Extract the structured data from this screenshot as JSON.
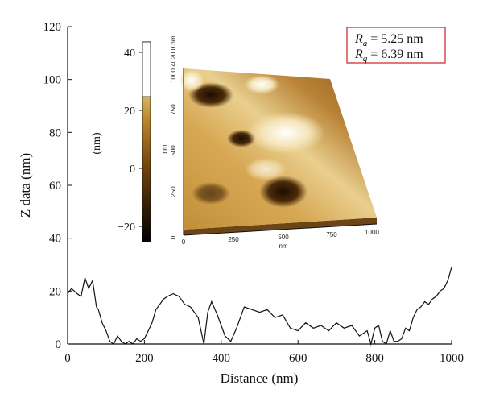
{
  "chart_data": {
    "type": "line",
    "xlabel": "Distance (nm)",
    "ylabel": "Z data (nm)",
    "xlim": [
      0,
      1000
    ],
    "ylim": [
      0,
      120
    ],
    "xticks": [
      "0",
      "200",
      "400",
      "600",
      "800",
      "1000"
    ],
    "yticks": [
      "0",
      "20",
      "40",
      "60",
      "80",
      "100",
      "120"
    ],
    "grid": false,
    "series": [
      {
        "x": [
          0,
          10,
          25,
          35,
          45,
          55,
          65,
          75,
          80,
          90,
          100,
          110,
          120,
          130,
          140,
          150,
          160,
          170,
          180,
          190,
          200,
          210,
          220,
          230,
          240,
          250,
          260,
          275,
          290,
          305,
          320,
          340,
          355,
          365,
          375,
          390,
          410,
          425,
          440,
          460,
          480,
          500,
          520,
          540,
          560,
          580,
          600,
          620,
          640,
          660,
          680,
          700,
          720,
          740,
          760,
          780,
          790,
          800,
          810,
          820,
          830,
          840,
          850,
          860,
          870,
          880,
          890,
          900,
          910,
          920,
          930,
          940,
          950,
          960,
          970,
          980,
          990,
          1000
        ],
        "y": [
          19,
          21,
          19,
          18,
          25,
          21,
          24,
          14,
          13,
          8,
          5,
          1,
          0,
          3,
          1,
          0,
          1,
          0,
          2,
          1,
          2,
          5,
          8,
          13,
          15,
          17,
          18,
          19,
          18,
          15,
          14,
          10,
          0,
          12,
          16,
          11,
          3,
          1,
          6,
          14,
          13,
          12,
          13,
          10,
          11,
          6,
          5,
          8,
          6,
          7,
          5,
          8,
          6,
          7,
          3,
          5,
          0,
          6,
          7,
          1,
          0,
          5,
          1,
          1,
          2,
          6,
          5,
          10,
          13,
          14,
          16,
          15,
          17,
          18,
          20,
          21,
          24,
          29
        ]
      }
    ]
  },
  "legend": {
    "ra_symbol": "R",
    "ra_sub": "a",
    "ra_value": " = 5.25 nm",
    "rq_symbol": "R",
    "rq_sub": "q",
    "rq_value": " = 6.39 nm",
    "border_color": "#cc2222"
  },
  "inset": {
    "colorbar_ticks": [
      "40",
      "20",
      "0",
      "−20"
    ],
    "colorbar_label": "(nm)",
    "x_ticks": [
      "0",
      "250",
      "500",
      "750",
      "1000"
    ],
    "x_unit": "nm",
    "y_ticks": [
      "0",
      "250",
      "500",
      "750",
      "1000"
    ],
    "y_unit": "nm",
    "z_ticks": [
      "40",
      "20",
      "0"
    ],
    "z_unit": "nm",
    "colors": [
      "#000000",
      "#3a2206",
      "#7a4a10",
      "#b7852a",
      "#dcbb6e",
      "#f2e2b8",
      "#ffffff"
    ]
  }
}
